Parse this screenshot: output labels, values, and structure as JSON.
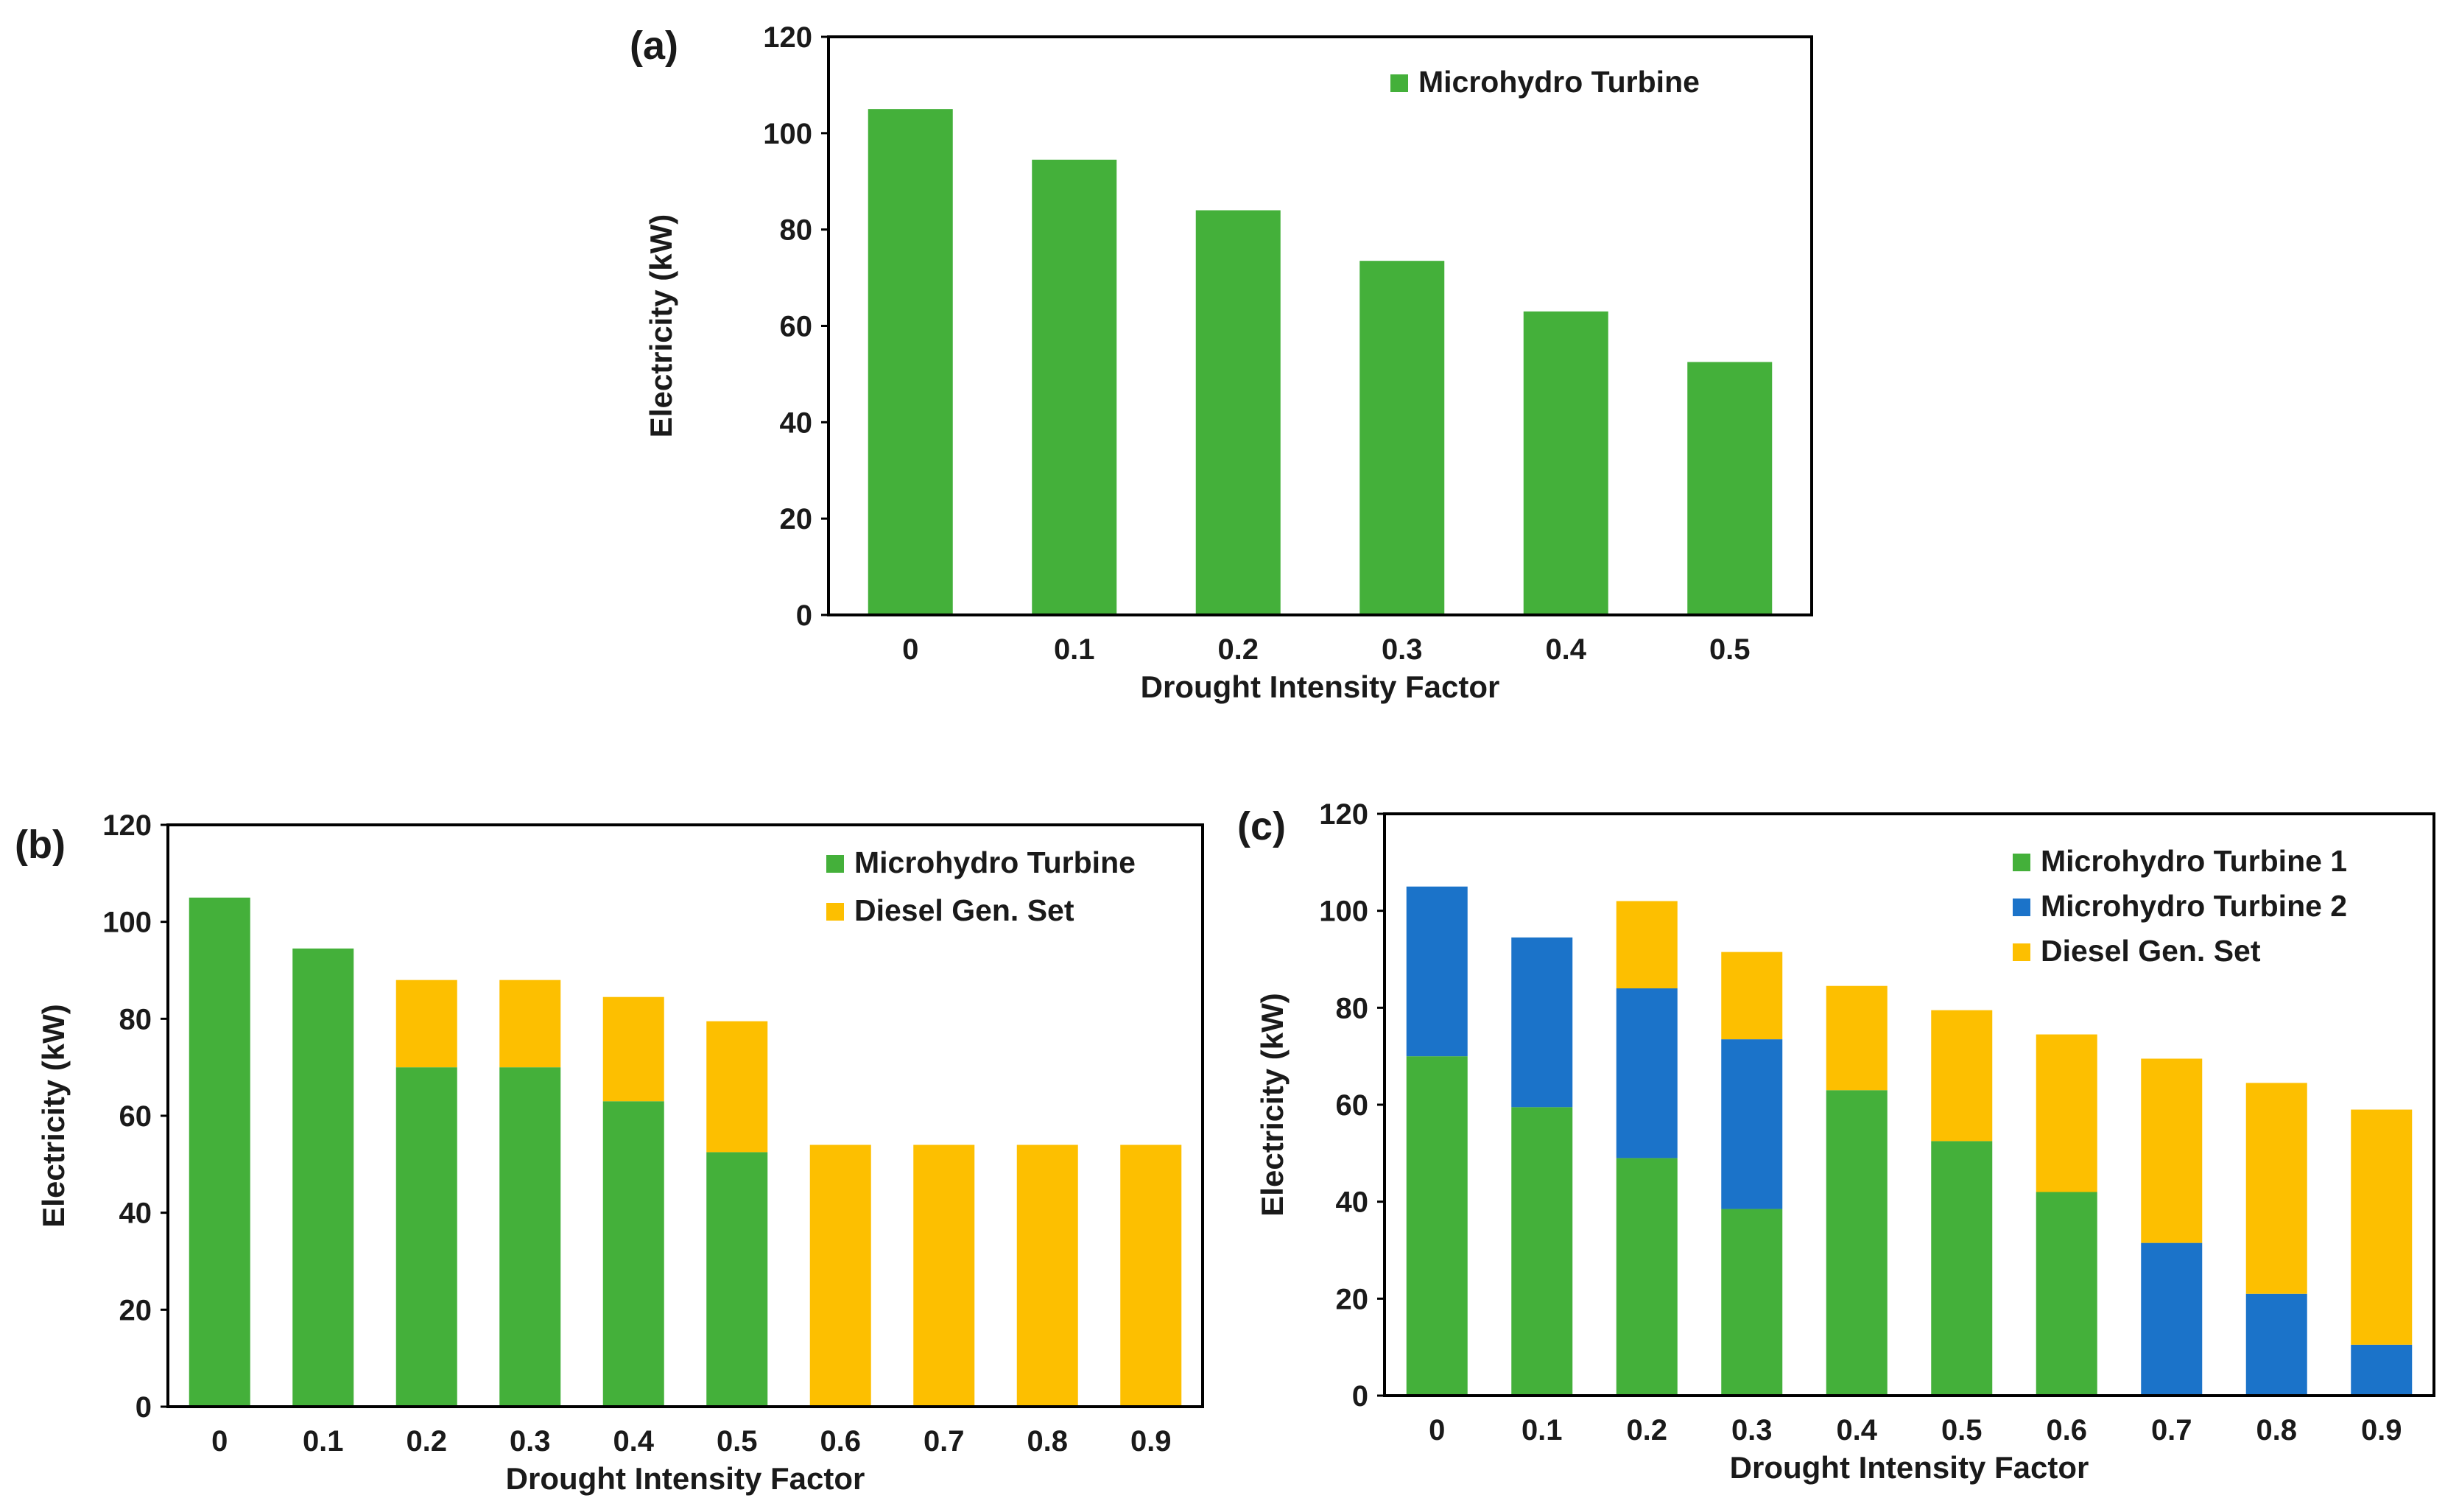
{
  "colors": {
    "microhydro_1": "#44b03a",
    "microhydro_2": "#1b73c9",
    "diesel": "#fdbf00"
  },
  "chart_data": [
    {
      "panel_label": "(a)",
      "type": "bar",
      "stacked": true,
      "xlabel": "Drought Intensity Factor",
      "ylabel": "Electricity (kW)",
      "ylim": [
        0,
        120
      ],
      "yticks": [
        "0",
        "20",
        "40",
        "60",
        "80",
        "100",
        "120"
      ],
      "categories": [
        "0",
        "0.1",
        "0.2",
        "0.3",
        "0.4",
        "0.5"
      ],
      "legend_position": "top-right",
      "series": [
        {
          "name": "Microhydro Turbine",
          "color_key": "microhydro_1",
          "values": [
            105,
            94.5,
            84,
            73.5,
            63,
            52.5
          ]
        }
      ]
    },
    {
      "panel_label": "(b)",
      "type": "bar",
      "stacked": true,
      "xlabel": "Drought Intensity Factor",
      "ylabel": "Electricity (kW)",
      "ylim": [
        0,
        120
      ],
      "yticks": [
        "0",
        "20",
        "40",
        "60",
        "80",
        "100",
        "120"
      ],
      "categories": [
        "0",
        "0.1",
        "0.2",
        "0.3",
        "0.4",
        "0.5",
        "0.6",
        "0.7",
        "0.8",
        "0.9"
      ],
      "legend_position": "top-right",
      "series": [
        {
          "name": "Microhydro Turbine",
          "color_key": "microhydro_1",
          "values": [
            105,
            94.5,
            70,
            70,
            63,
            52.5,
            0,
            0,
            0,
            0
          ]
        },
        {
          "name": "Diesel Gen. Set",
          "color_key": "diesel",
          "values": [
            0,
            0,
            18,
            18,
            21.5,
            27,
            54,
            54,
            54,
            54
          ]
        }
      ]
    },
    {
      "panel_label": "(c)",
      "type": "bar",
      "stacked": true,
      "xlabel": "Drought Intensity Factor",
      "ylabel": "Electricity (kW)",
      "ylim": [
        0,
        120
      ],
      "yticks": [
        "0",
        "20",
        "40",
        "60",
        "80",
        "100",
        "120"
      ],
      "categories": [
        "0",
        "0.1",
        "0.2",
        "0.3",
        "0.4",
        "0.5",
        "0.6",
        "0.7",
        "0.8",
        "0.9"
      ],
      "legend_position": "top-right",
      "series": [
        {
          "name": "Microhydro Turbine 1",
          "color_key": "microhydro_1",
          "values": [
            70,
            59.5,
            49,
            38.5,
            63,
            52.5,
            42,
            0,
            0,
            0
          ]
        },
        {
          "name": "Microhydro Turbine 2",
          "color_key": "microhydro_2",
          "values": [
            35,
            35,
            35,
            35,
            0,
            0,
            0,
            31.5,
            21,
            10.5
          ]
        },
        {
          "name": "Diesel Gen. Set",
          "color_key": "diesel",
          "values": [
            0,
            0,
            18,
            18,
            21.5,
            27,
            32.5,
            38,
            43.5,
            48.5
          ]
        }
      ]
    }
  ]
}
